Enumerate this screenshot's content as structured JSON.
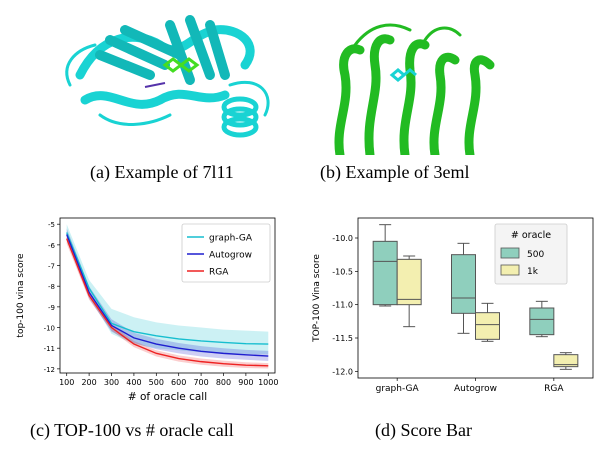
{
  "captions": {
    "a": "(a)  Example of 7l11",
    "b": "(b)  Example of 3eml",
    "c": "(c)  TOP-100 vs # oracle call",
    "d": "(d)  Score Bar"
  },
  "colors": {
    "graph_ga": "#17becf",
    "autogrow": "#1f1fcf",
    "rga": "#ee2222",
    "box_500": "#8fcfbd",
    "box_1k": "#f3efb0",
    "protein_a": "#19d3d3",
    "protein_b": "#22bb22"
  },
  "chart_data": [
    {
      "type": "line",
      "xlabel": "# of oracle call",
      "ylabel": "top-100 vina score",
      "x": [
        100,
        200,
        300,
        400,
        500,
        600,
        700,
        800,
        900,
        1000
      ],
      "xticks": [
        100,
        200,
        300,
        400,
        500,
        600,
        700,
        800,
        900,
        1000
      ],
      "yticks": [
        -5,
        -6,
        -7,
        -8,
        -9,
        -10,
        -11,
        -12
      ],
      "ylim": [
        -12.2,
        -4.7
      ],
      "xlim": [
        70,
        1030
      ],
      "legend_position": "top-right",
      "series": [
        {
          "name": "graph-GA",
          "values": [
            -5.4,
            -8.1,
            -9.8,
            -10.2,
            -10.4,
            -10.55,
            -10.65,
            -10.72,
            -10.78,
            -10.8
          ],
          "band_upper": [
            -5.0,
            -7.7,
            -9.1,
            -9.5,
            -9.75,
            -9.9,
            -10.0,
            -10.1,
            -10.15,
            -10.2
          ],
          "band_lower": [
            -5.8,
            -8.5,
            -10.3,
            -10.8,
            -11.0,
            -11.1,
            -11.2,
            -11.25,
            -11.28,
            -11.3
          ]
        },
        {
          "name": "Autogrow",
          "values": [
            -5.5,
            -8.3,
            -9.9,
            -10.5,
            -10.8,
            -11.0,
            -11.15,
            -11.25,
            -11.32,
            -11.38
          ],
          "band_upper": [
            -5.2,
            -8.0,
            -9.6,
            -10.25,
            -10.55,
            -10.75,
            -10.9,
            -11.0,
            -11.08,
            -11.13
          ],
          "band_lower": [
            -5.8,
            -8.6,
            -10.2,
            -10.75,
            -11.05,
            -11.25,
            -11.4,
            -11.5,
            -11.56,
            -11.62
          ]
        },
        {
          "name": "RGA",
          "values": [
            -5.7,
            -8.45,
            -10.0,
            -10.8,
            -11.25,
            -11.5,
            -11.65,
            -11.75,
            -11.82,
            -11.85
          ],
          "band_upper": [
            -5.45,
            -8.25,
            -9.85,
            -10.65,
            -11.1,
            -11.35,
            -11.5,
            -11.6,
            -11.68,
            -11.72
          ],
          "band_lower": [
            -5.95,
            -8.65,
            -10.15,
            -10.95,
            -11.4,
            -11.65,
            -11.8,
            -11.9,
            -11.96,
            -11.98
          ]
        }
      ]
    },
    {
      "type": "box",
      "ylabel": "TOP-100 Vina score",
      "categories": [
        "graph-GA",
        "Autogrow",
        "RGA"
      ],
      "yticks": [
        -10.0,
        -10.5,
        -11.0,
        -11.5,
        -12.0
      ],
      "ylim": [
        -12.1,
        -9.7
      ],
      "legend_title": "# oracle",
      "legend_position": "top-right",
      "series": [
        {
          "name": "500",
          "boxes": [
            {
              "min": -11.02,
              "q1": -11.0,
              "median": -10.35,
              "q3": -10.05,
              "max": -9.8
            },
            {
              "min": -11.43,
              "q1": -11.13,
              "median": -10.9,
              "q3": -10.25,
              "max": -10.08
            },
            {
              "min": -11.48,
              "q1": -11.45,
              "median": -11.22,
              "q3": -11.05,
              "max": -10.95
            }
          ]
        },
        {
          "name": "1k",
          "boxes": [
            {
              "min": -11.33,
              "q1": -11.0,
              "median": -10.92,
              "q3": -10.32,
              "max": -10.27
            },
            {
              "min": -11.55,
              "q1": -11.52,
              "median": -11.3,
              "q3": -11.12,
              "max": -10.98
            },
            {
              "min": -11.97,
              "q1": -11.93,
              "median": -11.9,
              "q3": -11.75,
              "max": -11.72
            }
          ]
        }
      ]
    }
  ]
}
